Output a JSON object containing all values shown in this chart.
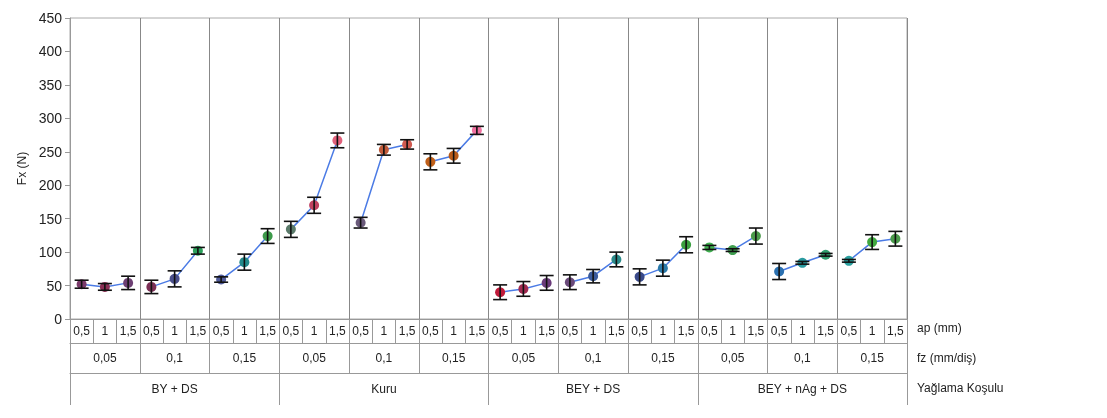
{
  "chart_data": {
    "type": "line",
    "ylabel": "Fx (N)",
    "xlabel": "ap (mm)",
    "marker": "circle",
    "line_style": "solid",
    "categories": [
      "0,5",
      "1",
      "1,5",
      "0,5",
      "1",
      "1,5",
      "0,5",
      "1",
      "1,5",
      "0,5",
      "1",
      "1,5",
      "0,5",
      "1",
      "1,5",
      "0,5",
      "1",
      "1,5",
      "0,5",
      "1",
      "1,5",
      "0,5",
      "1",
      "1,5",
      "0,5",
      "1",
      "1,5",
      "0,5",
      "1",
      "1,5",
      "0,5",
      "1",
      "1,5",
      "0,5",
      "1",
      "1,5"
    ],
    "annotations": [
      "0,05",
      "0,1",
      "0,15",
      "0,05",
      "0,1",
      "0,15",
      "0,05",
      "0,1",
      "0,15",
      "0,05",
      "0,1",
      "0,15",
      "fz (mm/diş)",
      "BY + DS",
      "Kuru",
      "BEY + DS",
      "BEY + nAg + DS",
      "Yağlama Koşulu"
    ],
    "ylim": [
      0,
      450
    ],
    "yticks": [
      0,
      50,
      100,
      150,
      200,
      250,
      300,
      350,
      400,
      450
    ],
    "series": [
      {
        "color": "#4b7be5",
        "values": [
          52,
          48,
          54,
          null,
          null,
          null,
          null,
          null,
          null,
          null,
          null,
          null,
          null,
          null,
          null,
          null,
          null,
          null,
          null,
          null,
          null,
          null,
          null,
          null,
          null,
          null,
          null,
          null,
          null,
          null,
          null,
          null,
          null,
          null,
          null,
          null
        ],
        "errors": [
          6,
          5,
          10,
          null,
          null,
          null,
          null,
          null,
          null,
          null,
          null,
          null,
          null,
          null,
          null,
          null,
          null,
          null,
          null,
          null,
          null,
          null,
          null,
          null,
          null,
          null,
          null,
          null,
          null,
          null,
          null,
          null,
          null,
          null,
          null,
          null
        ],
        "colors": [
          "#7b3b6b",
          "#8b2f55",
          "#6d3f73",
          null,
          null,
          null,
          null,
          null,
          null,
          null,
          null,
          null,
          null,
          null,
          null,
          null,
          null,
          null,
          null,
          null,
          null,
          null,
          null,
          null,
          null,
          null,
          null,
          null,
          null,
          null,
          null,
          null,
          null,
          null,
          null,
          null
        ]
      },
      {
        "color": "#4b7be5",
        "values": [
          null,
          null,
          null,
          48,
          60,
          102,
          null,
          null,
          null,
          null,
          null,
          null,
          null,
          null,
          null,
          null,
          null,
          null,
          null,
          null,
          null,
          null,
          null,
          null,
          null,
          null,
          null,
          null,
          null,
          null,
          null,
          null,
          null,
          null,
          null,
          null
        ],
        "errors": [
          null,
          null,
          null,
          10,
          12,
          5,
          null,
          null,
          null,
          null,
          null,
          null,
          null,
          null,
          null,
          null,
          null,
          null,
          null,
          null,
          null,
          null,
          null,
          null,
          null,
          null,
          null,
          null,
          null,
          null,
          null,
          null,
          null,
          null,
          null,
          null
        ],
        "colors": [
          null,
          null,
          null,
          "#7b2f55",
          "#4a4f8a",
          "#2aa05a",
          null,
          null,
          null,
          null,
          null,
          null,
          null,
          null,
          null,
          null,
          null,
          null,
          null,
          null,
          null,
          null,
          null,
          null,
          null,
          null,
          null,
          null,
          null,
          null,
          null,
          null,
          null,
          null,
          null,
          null
        ]
      },
      {
        "color": "#4b7be5",
        "values": [
          null,
          null,
          null,
          null,
          null,
          null,
          59,
          85,
          124,
          null,
          null,
          null,
          null,
          null,
          null,
          null,
          null,
          null,
          null,
          null,
          null,
          null,
          null,
          null,
          null,
          null,
          null,
          null,
          null,
          null,
          null,
          null,
          null,
          null,
          null,
          null
        ],
        "errors": [
          null,
          null,
          null,
          null,
          null,
          null,
          4,
          12,
          11,
          null,
          null,
          null,
          null,
          null,
          null,
          null,
          null,
          null,
          null,
          null,
          null,
          null,
          null,
          null,
          null,
          null,
          null,
          null,
          null,
          null,
          null,
          null,
          null,
          null,
          null,
          null
        ],
        "colors": [
          null,
          null,
          null,
          null,
          null,
          null,
          "#4f5a9a",
          "#238a8a",
          "#3d9a4a",
          null,
          null,
          null,
          null,
          null,
          null,
          null,
          null,
          null,
          null,
          null,
          null,
          null,
          null,
          null,
          null,
          null,
          null,
          null,
          null,
          null,
          null,
          null,
          null,
          null,
          null,
          null
        ]
      },
      {
        "color": "#4b7be5",
        "values": [
          null,
          null,
          null,
          null,
          null,
          null,
          null,
          null,
          null,
          134,
          170,
          267,
          null,
          null,
          null,
          null,
          null,
          null,
          null,
          null,
          null,
          null,
          null,
          null,
          null,
          null,
          null,
          null,
          null,
          null,
          null,
          null,
          null,
          null,
          null,
          null
        ],
        "errors": [
          null,
          null,
          null,
          null,
          null,
          null,
          null,
          null,
          null,
          12,
          12,
          11,
          null,
          null,
          null,
          null,
          null,
          null,
          null,
          null,
          null,
          null,
          null,
          null,
          null,
          null,
          null,
          null,
          null,
          null,
          null,
          null,
          null,
          null,
          null,
          null
        ],
        "colors": [
          null,
          null,
          null,
          null,
          null,
          null,
          null,
          null,
          null,
          "#5a7a6a",
          "#c04060",
          "#e0607a",
          null,
          null,
          null,
          null,
          null,
          null,
          null,
          null,
          null,
          null,
          null,
          null,
          null,
          null,
          null,
          null,
          null,
          null,
          null,
          null,
          null,
          null,
          null,
          null
        ]
      },
      {
        "color": "#4b7be5",
        "values": [
          null,
          null,
          null,
          null,
          null,
          null,
          null,
          null,
          null,
          null,
          null,
          null,
          144,
          253,
          261,
          null,
          null,
          null,
          null,
          null,
          null,
          null,
          null,
          null,
          null,
          null,
          null,
          null,
          null,
          null,
          null,
          null,
          null,
          null,
          null,
          null
        ],
        "errors": [
          null,
          null,
          null,
          null,
          null,
          null,
          null,
          null,
          null,
          null,
          null,
          null,
          8,
          8,
          7,
          null,
          null,
          null,
          null,
          null,
          null,
          null,
          null,
          null,
          null,
          null,
          null,
          null,
          null,
          null,
          null,
          null,
          null,
          null,
          null,
          null
        ],
        "colors": [
          null,
          null,
          null,
          null,
          null,
          null,
          null,
          null,
          null,
          null,
          null,
          null,
          "#6a5a7a",
          "#c05a3a",
          "#d05a50",
          null,
          null,
          null,
          null,
          null,
          null,
          null,
          null,
          null,
          null,
          null,
          null,
          null,
          null,
          null,
          null,
          null,
          null,
          null,
          null,
          null
        ]
      },
      {
        "color": "#4b7be5",
        "values": [
          null,
          null,
          null,
          null,
          null,
          null,
          null,
          null,
          null,
          null,
          null,
          null,
          null,
          null,
          null,
          235,
          244,
          282,
          null,
          null,
          null,
          null,
          null,
          null,
          null,
          null,
          null,
          null,
          null,
          null,
          null,
          null,
          null,
          null,
          null,
          null
        ],
        "errors": [
          null,
          null,
          null,
          null,
          null,
          null,
          null,
          null,
          null,
          null,
          null,
          null,
          null,
          null,
          null,
          12,
          11,
          6,
          null,
          null,
          null,
          null,
          null,
          null,
          null,
          null,
          null,
          null,
          null,
          null,
          null,
          null,
          null,
          null,
          null,
          null
        ],
        "colors": [
          null,
          null,
          null,
          null,
          null,
          null,
          null,
          null,
          null,
          null,
          null,
          null,
          null,
          null,
          null,
          "#c0601a",
          "#b85a1a",
          "#f070a0",
          null,
          null,
          null,
          null,
          null,
          null,
          null,
          null,
          null,
          null,
          null,
          null,
          null,
          null,
          null,
          null,
          null,
          null
        ]
      },
      {
        "color": "#4b7be5",
        "values": [
          null,
          null,
          null,
          null,
          null,
          null,
          null,
          null,
          null,
          null,
          null,
          null,
          null,
          null,
          null,
          null,
          null,
          null,
          40,
          45,
          54,
          null,
          null,
          null,
          null,
          null,
          null,
          null,
          null,
          null,
          null,
          null,
          null,
          null,
          null,
          null
        ],
        "errors": [
          null,
          null,
          null,
          null,
          null,
          null,
          null,
          null,
          null,
          null,
          null,
          null,
          null,
          null,
          null,
          null,
          null,
          null,
          11,
          11,
          11,
          null,
          null,
          null,
          null,
          null,
          null,
          null,
          null,
          null,
          null,
          null,
          null,
          null,
          null,
          null
        ],
        "colors": [
          null,
          null,
          null,
          null,
          null,
          null,
          null,
          null,
          null,
          null,
          null,
          null,
          null,
          null,
          null,
          null,
          null,
          null,
          "#c01a3a",
          "#a02a50",
          "#6a3a7a",
          null,
          null,
          null,
          null,
          null,
          null,
          null,
          null,
          null,
          null,
          null,
          null,
          null,
          null,
          null
        ]
      },
      {
        "color": "#4b7be5",
        "values": [
          null,
          null,
          null,
          null,
          null,
          null,
          null,
          null,
          null,
          null,
          null,
          null,
          null,
          null,
          null,
          null,
          null,
          null,
          null,
          null,
          null,
          55,
          64,
          89,
          null,
          null,
          null,
          null,
          null,
          null,
          null,
          null,
          null,
          null,
          null,
          null
        ],
        "errors": [
          null,
          null,
          null,
          null,
          null,
          null,
          null,
          null,
          null,
          null,
          null,
          null,
          null,
          null,
          null,
          null,
          null,
          null,
          null,
          null,
          null,
          11,
          10,
          11,
          null,
          null,
          null,
          null,
          null,
          null,
          null,
          null,
          null,
          null,
          null,
          null
        ],
        "colors": [
          null,
          null,
          null,
          null,
          null,
          null,
          null,
          null,
          null,
          null,
          null,
          null,
          null,
          null,
          null,
          null,
          null,
          null,
          null,
          null,
          null,
          "#6a4a7a",
          "#3a5a9a",
          "#2a8a8a",
          null,
          null,
          null,
          null,
          null,
          null,
          null,
          null,
          null,
          null,
          null,
          null
        ]
      },
      {
        "color": "#4b7be5",
        "values": [
          null,
          null,
          null,
          null,
          null,
          null,
          null,
          null,
          null,
          null,
          null,
          null,
          null,
          null,
          null,
          null,
          null,
          null,
          null,
          null,
          null,
          null,
          null,
          null,
          63,
          76,
          111,
          null,
          null,
          null,
          null,
          null,
          null,
          null,
          null,
          null
        ],
        "errors": [
          null,
          null,
          null,
          null,
          null,
          null,
          null,
          null,
          null,
          null,
          null,
          null,
          null,
          null,
          null,
          null,
          null,
          null,
          null,
          null,
          null,
          null,
          null,
          null,
          12,
          12,
          12,
          null,
          null,
          null,
          null,
          null,
          null,
          null,
          null,
          null
        ],
        "colors": [
          null,
          null,
          null,
          null,
          null,
          null,
          null,
          null,
          null,
          null,
          null,
          null,
          null,
          null,
          null,
          null,
          null,
          null,
          null,
          null,
          null,
          null,
          null,
          null,
          "#3a4a8a",
          "#2a7aaa",
          "#3aa040",
          null,
          null,
          null,
          null,
          null,
          null,
          null,
          null,
          null
        ]
      },
      {
        "color": "#4b7be5",
        "values": [
          null,
          null,
          null,
          null,
          null,
          null,
          null,
          null,
          null,
          null,
          null,
          null,
          null,
          null,
          null,
          null,
          null,
          null,
          null,
          null,
          null,
          null,
          null,
          null,
          null,
          null,
          null,
          107,
          103,
          124,
          null,
          null,
          null,
          null,
          null,
          null
        ],
        "errors": [
          null,
          null,
          null,
          null,
          null,
          null,
          null,
          null,
          null,
          null,
          null,
          null,
          null,
          null,
          null,
          null,
          null,
          null,
          null,
          null,
          null,
          null,
          null,
          null,
          null,
          null,
          null,
          3,
          2,
          12,
          null,
          null,
          null,
          null,
          null,
          null
        ],
        "colors": [
          null,
          null,
          null,
          null,
          null,
          null,
          null,
          null,
          null,
          null,
          null,
          null,
          null,
          null,
          null,
          null,
          null,
          null,
          null,
          null,
          null,
          null,
          null,
          null,
          null,
          null,
          null,
          "#40b050",
          "#40a050",
          "#4a9a4a",
          null,
          null,
          null,
          null,
          null,
          null
        ]
      },
      {
        "color": "#4b7be5",
        "values": [
          null,
          null,
          null,
          null,
          null,
          null,
          null,
          null,
          null,
          null,
          null,
          null,
          null,
          null,
          null,
          null,
          null,
          null,
          null,
          null,
          null,
          null,
          null,
          null,
          null,
          null,
          null,
          null,
          null,
          null,
          71,
          84,
          96,
          null,
          null,
          null
        ],
        "errors": [
          null,
          null,
          null,
          null,
          null,
          null,
          null,
          null,
          null,
          null,
          null,
          null,
          null,
          null,
          null,
          null,
          null,
          null,
          null,
          null,
          null,
          null,
          null,
          null,
          null,
          null,
          null,
          null,
          null,
          null,
          12,
          2,
          2,
          null,
          null,
          null
        ],
        "colors": [
          null,
          null,
          null,
          null,
          null,
          null,
          null,
          null,
          null,
          null,
          null,
          null,
          null,
          null,
          null,
          null,
          null,
          null,
          null,
          null,
          null,
          null,
          null,
          null,
          null,
          null,
          null,
          null,
          null,
          null,
          "#2a70b0",
          "#2a9aa0",
          "#30a070",
          null,
          null,
          null
        ]
      },
      {
        "color": "#4b7be5",
        "values": [
          null,
          null,
          null,
          null,
          null,
          null,
          null,
          null,
          null,
          null,
          null,
          null,
          null,
          null,
          null,
          null,
          null,
          null,
          null,
          null,
          null,
          null,
          null,
          null,
          null,
          null,
          null,
          null,
          null,
          null,
          null,
          null,
          null,
          87,
          115,
          120
        ],
        "errors": [
          null,
          null,
          null,
          null,
          null,
          null,
          null,
          null,
          null,
          null,
          null,
          null,
          null,
          null,
          null,
          null,
          null,
          null,
          null,
          null,
          null,
          null,
          null,
          null,
          null,
          null,
          null,
          null,
          null,
          null,
          null,
          null,
          null,
          2,
          11,
          11
        ],
        "colors": [
          null,
          null,
          null,
          null,
          null,
          null,
          null,
          null,
          null,
          null,
          null,
          null,
          null,
          null,
          null,
          null,
          null,
          null,
          null,
          null,
          null,
          null,
          null,
          null,
          null,
          null,
          null,
          null,
          null,
          null,
          null,
          null,
          null,
          "#2aa0a0",
          "#40a840",
          "#4a9a4a"
        ]
      }
    ]
  }
}
